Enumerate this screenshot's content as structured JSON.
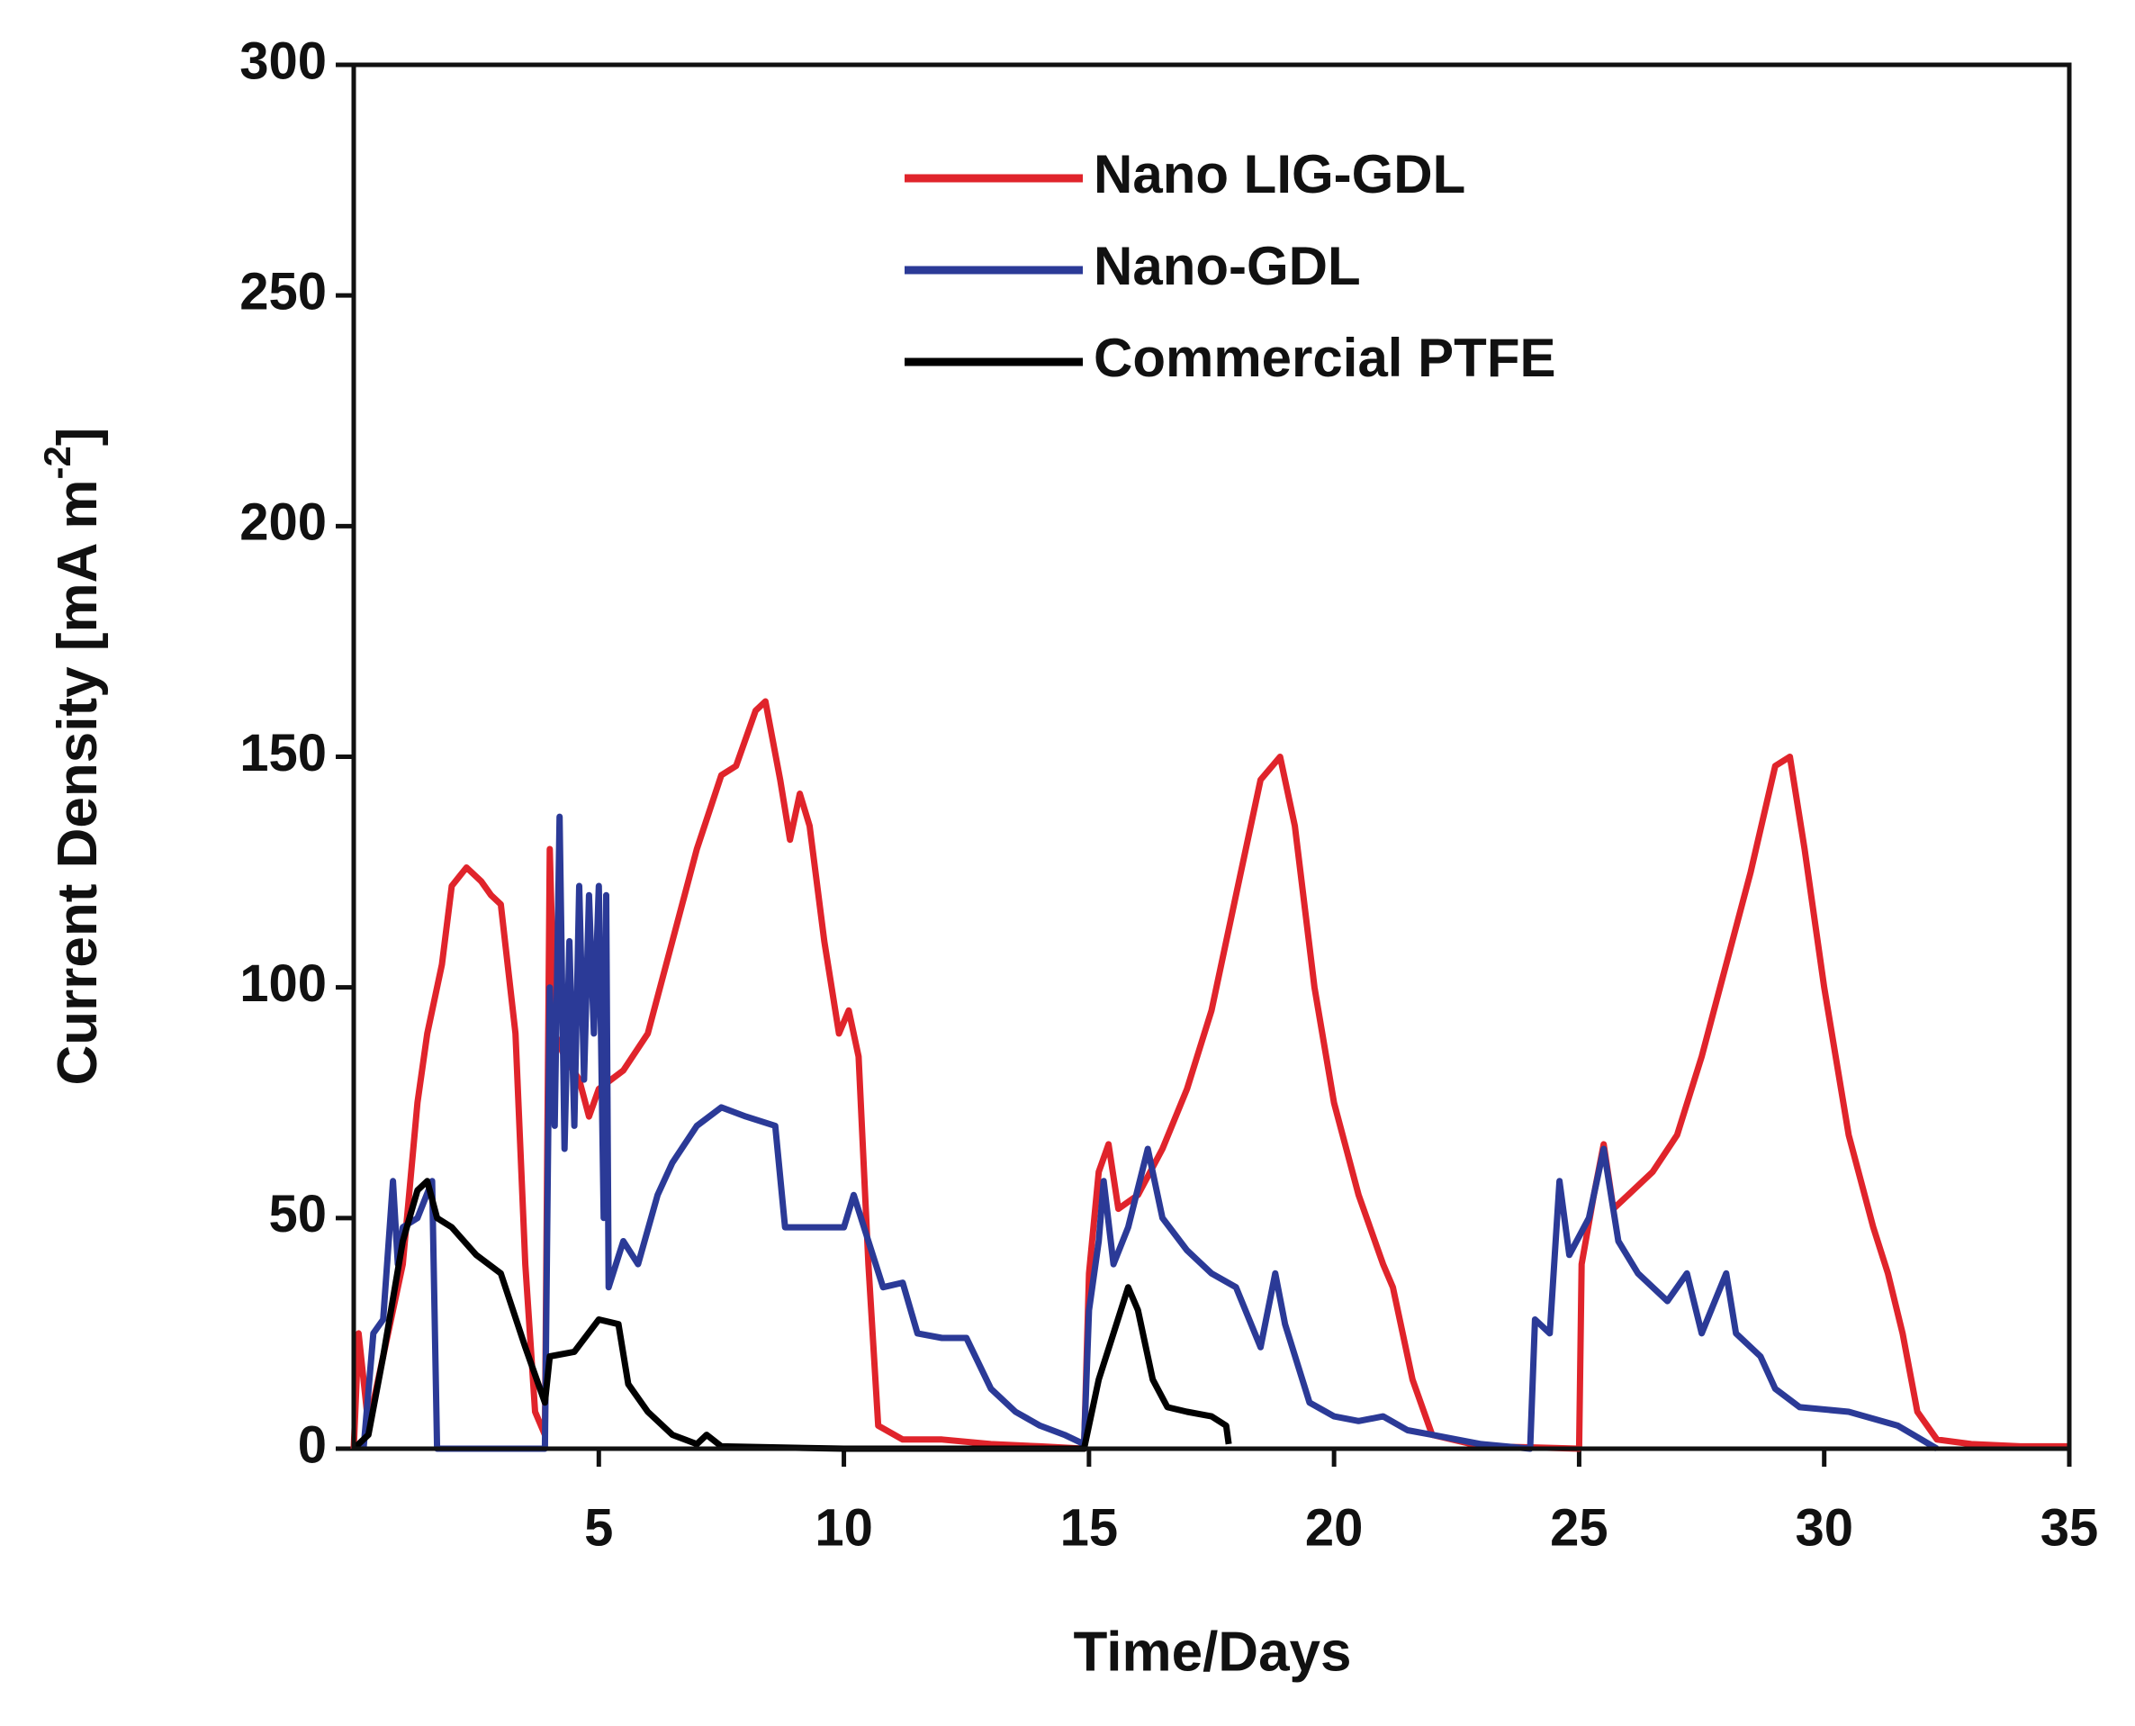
{
  "chart_data": {
    "type": "line",
    "x_label": "Time/Days",
    "y_label": {
      "text": "Current Density [mA m",
      "superscript": "-2",
      "suffix": "]"
    },
    "xlim": [
      0,
      35
    ],
    "xticks": [
      5,
      10,
      15,
      20,
      25,
      30,
      35
    ],
    "ylim": [
      0,
      300
    ],
    "yticks": [
      0,
      50,
      100,
      150,
      200,
      250,
      300
    ],
    "legend": "top",
    "series": [
      {
        "name": "Nano LIG-GDL",
        "color": "#e0242b",
        "x": [
          0,
          0.1,
          0.3,
          1,
          1.3,
          1.5,
          1.8,
          2,
          2.3,
          2.6,
          2.8,
          3,
          3.3,
          3.5,
          3.7,
          3.9,
          4.0,
          4.1,
          4.3,
          4.6,
          4.8,
          5,
          5.5,
          6,
          6.5,
          7,
          7.5,
          7.8,
          8.2,
          8.4,
          8.7,
          8.9,
          9.1,
          9.3,
          9.6,
          9.9,
          10.1,
          10.3,
          10.5,
          10.7,
          11.2,
          12,
          13,
          14,
          14.9,
          15,
          15.2,
          15.4,
          15.6,
          16,
          16.5,
          17,
          17.5,
          18,
          18.5,
          18.9,
          19.2,
          19.6,
          20,
          20.5,
          21,
          21.2,
          21.6,
          22,
          23,
          24,
          25.0,
          25.05,
          25.3,
          25.5,
          25.7,
          26,
          26.5,
          27,
          27.5,
          28,
          28.5,
          29,
          29.3,
          29.6,
          30,
          30.5,
          31,
          31.3,
          31.6,
          31.9,
          32.3,
          33,
          34,
          35
        ],
        "values": [
          0,
          25,
          5,
          40,
          75,
          90,
          105,
          122,
          126,
          123,
          120,
          118,
          90,
          40,
          8,
          3,
          130,
          90,
          85,
          80,
          72,
          78,
          82,
          90,
          110,
          130,
          146,
          148,
          160,
          162,
          145,
          132,
          142,
          135,
          110,
          90,
          95,
          85,
          40,
          5,
          2,
          2,
          1,
          0.5,
          0,
          38,
          60,
          66,
          52,
          55,
          65,
          78,
          95,
          120,
          145,
          150,
          135,
          100,
          75,
          55,
          40,
          35,
          15,
          3,
          0.5,
          0.3,
          0,
          40,
          55,
          66,
          52,
          55,
          60,
          68,
          85,
          105,
          125,
          148,
          150,
          130,
          100,
          68,
          48,
          38,
          25,
          8,
          2,
          1,
          0.5,
          0.5
        ]
      },
      {
        "name": "Nano-GDL",
        "color": "#2b3a97",
        "x": [
          0.2,
          0.4,
          0.6,
          0.8,
          0.9,
          1,
          1.3,
          1.6,
          1.7,
          2,
          3.9,
          4.0,
          4.1,
          4.2,
          4.3,
          4.4,
          4.5,
          4.6,
          4.7,
          4.8,
          4.9,
          5.0,
          5.1,
          5.15,
          5.2,
          5.5,
          5.8,
          6.2,
          6.5,
          7,
          7.5,
          8,
          8.6,
          8.8,
          9.5,
          10,
          10.2,
          10.5,
          10.8,
          11.2,
          11.5,
          12,
          12.5,
          13,
          13.5,
          14,
          14.5,
          14.9,
          15.0,
          15.2,
          15.3,
          15.5,
          15.8,
          16.2,
          16.5,
          17,
          17.5,
          18,
          18.5,
          18.8,
          19,
          19.5,
          20,
          20.5,
          21,
          21.5,
          22,
          23,
          24,
          24.1,
          24.4,
          24.6,
          24.8,
          25.2,
          25.5,
          25.8,
          26.2,
          26.8,
          27.2,
          27.5,
          28,
          28.2,
          28.7,
          29,
          29.5,
          30.5,
          31.5,
          32.3
        ],
        "values": [
          0,
          25,
          28,
          58,
          40,
          48,
          50,
          58,
          0,
          0,
          0,
          100,
          70,
          137,
          65,
          110,
          70,
          122,
          80,
          120,
          90,
          122,
          50,
          120,
          35,
          45,
          40,
          55,
          62,
          70,
          74,
          72,
          70,
          48,
          48,
          48,
          55,
          45,
          35,
          36,
          25,
          24,
          24,
          13,
          8,
          5,
          3,
          1,
          30,
          45,
          58,
          40,
          48,
          65,
          50,
          43,
          38,
          35,
          22,
          38,
          27,
          10,
          7,
          6,
          7,
          4,
          3,
          1,
          0,
          28,
          25,
          58,
          42,
          50,
          65,
          45,
          38,
          32,
          38,
          25,
          38,
          25,
          20,
          13,
          9,
          8,
          5,
          0
        ]
      },
      {
        "name": "Commercial PTFE",
        "color": "#000000",
        "x": [
          0,
          0.3,
          0.6,
          1,
          1.3,
          1.5,
          1.7,
          2,
          2.5,
          3,
          3.5,
          3.9,
          4.0,
          4.5,
          5,
          5.4,
          5.6,
          6,
          6.5,
          7,
          7.2,
          7.5,
          10,
          14.9,
          15.2,
          15.5,
          15.8,
          16,
          16.3,
          16.6,
          17,
          17.5,
          17.8,
          17.85
        ],
        "values": [
          0,
          3,
          20,
          45,
          56,
          58,
          50,
          48,
          42,
          38,
          22,
          10,
          20,
          21,
          28,
          27,
          14,
          8,
          3,
          1,
          3,
          0.5,
          0,
          0,
          15,
          25,
          35,
          30,
          15,
          9,
          8,
          7,
          5,
          1
        ]
      }
    ]
  }
}
